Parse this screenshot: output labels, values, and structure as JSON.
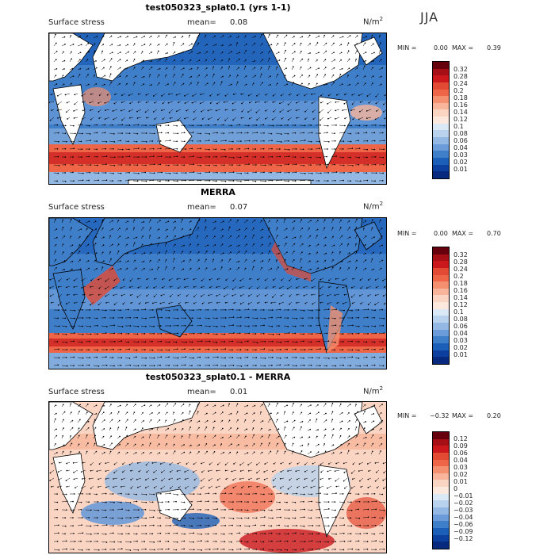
{
  "season": "JJA",
  "palette_positive": [
    "#67000d",
    "#a50f15",
    "#cb181d",
    "#e34a33",
    "#ef6548",
    "#f4906f",
    "#f8b59b",
    "#fbd5c4",
    "#fde8de",
    "#ffffff",
    "#dbe8f6",
    "#b9d2ee",
    "#93b8e4",
    "#6b9bd8",
    "#3f7ec8",
    "#1c5fb8",
    "#0d3f9e",
    "#072a7e"
  ],
  "panels": [
    {
      "title": "test050323_splat0.1 (yrs 1-1)",
      "variable": "Surface stress",
      "mean_label": "mean=",
      "mean_value": "0.08",
      "units": "N/m",
      "units_exp": "2",
      "min_label": "MIN =",
      "min_value": "0.00",
      "max_label": "MAX =",
      "max_value": "0.39",
      "levels": [
        "0.32",
        "0.28",
        "0.24",
        "0.2",
        "0.18",
        "0.16",
        "0.14",
        "0.12",
        "0.1",
        "0.08",
        "0.06",
        "0.04",
        "0.03",
        "0.02",
        "0.01"
      ]
    },
    {
      "title": "MERRA",
      "variable": "Surface stress",
      "mean_label": "mean=",
      "mean_value": "0.07",
      "units": "N/m",
      "units_exp": "2",
      "min_label": "MIN =",
      "min_value": "0.00",
      "max_label": "MAX =",
      "max_value": "0.70",
      "levels": [
        "0.32",
        "0.28",
        "0.24",
        "0.2",
        "0.18",
        "0.16",
        "0.14",
        "0.12",
        "0.1",
        "0.08",
        "0.06",
        "0.04",
        "0.03",
        "0.02",
        "0.01"
      ]
    },
    {
      "title": "test050323_splat0.1 - MERRA",
      "variable": "Surface stress",
      "mean_label": "mean=",
      "mean_value": "0.01",
      "units": "N/m",
      "units_exp": "2",
      "min_label": "MIN =",
      "min_value": "−0.32",
      "max_label": "MAX =",
      "max_value": "0.20",
      "levels": [
        "0.12",
        "0.09",
        "0.06",
        "0.04",
        "0.03",
        "0.02",
        "0.01",
        "0",
        "−0.01",
        "−0.02",
        "−0.03",
        "−0.04",
        "−0.06",
        "−0.09",
        "−0.12"
      ]
    }
  ]
}
